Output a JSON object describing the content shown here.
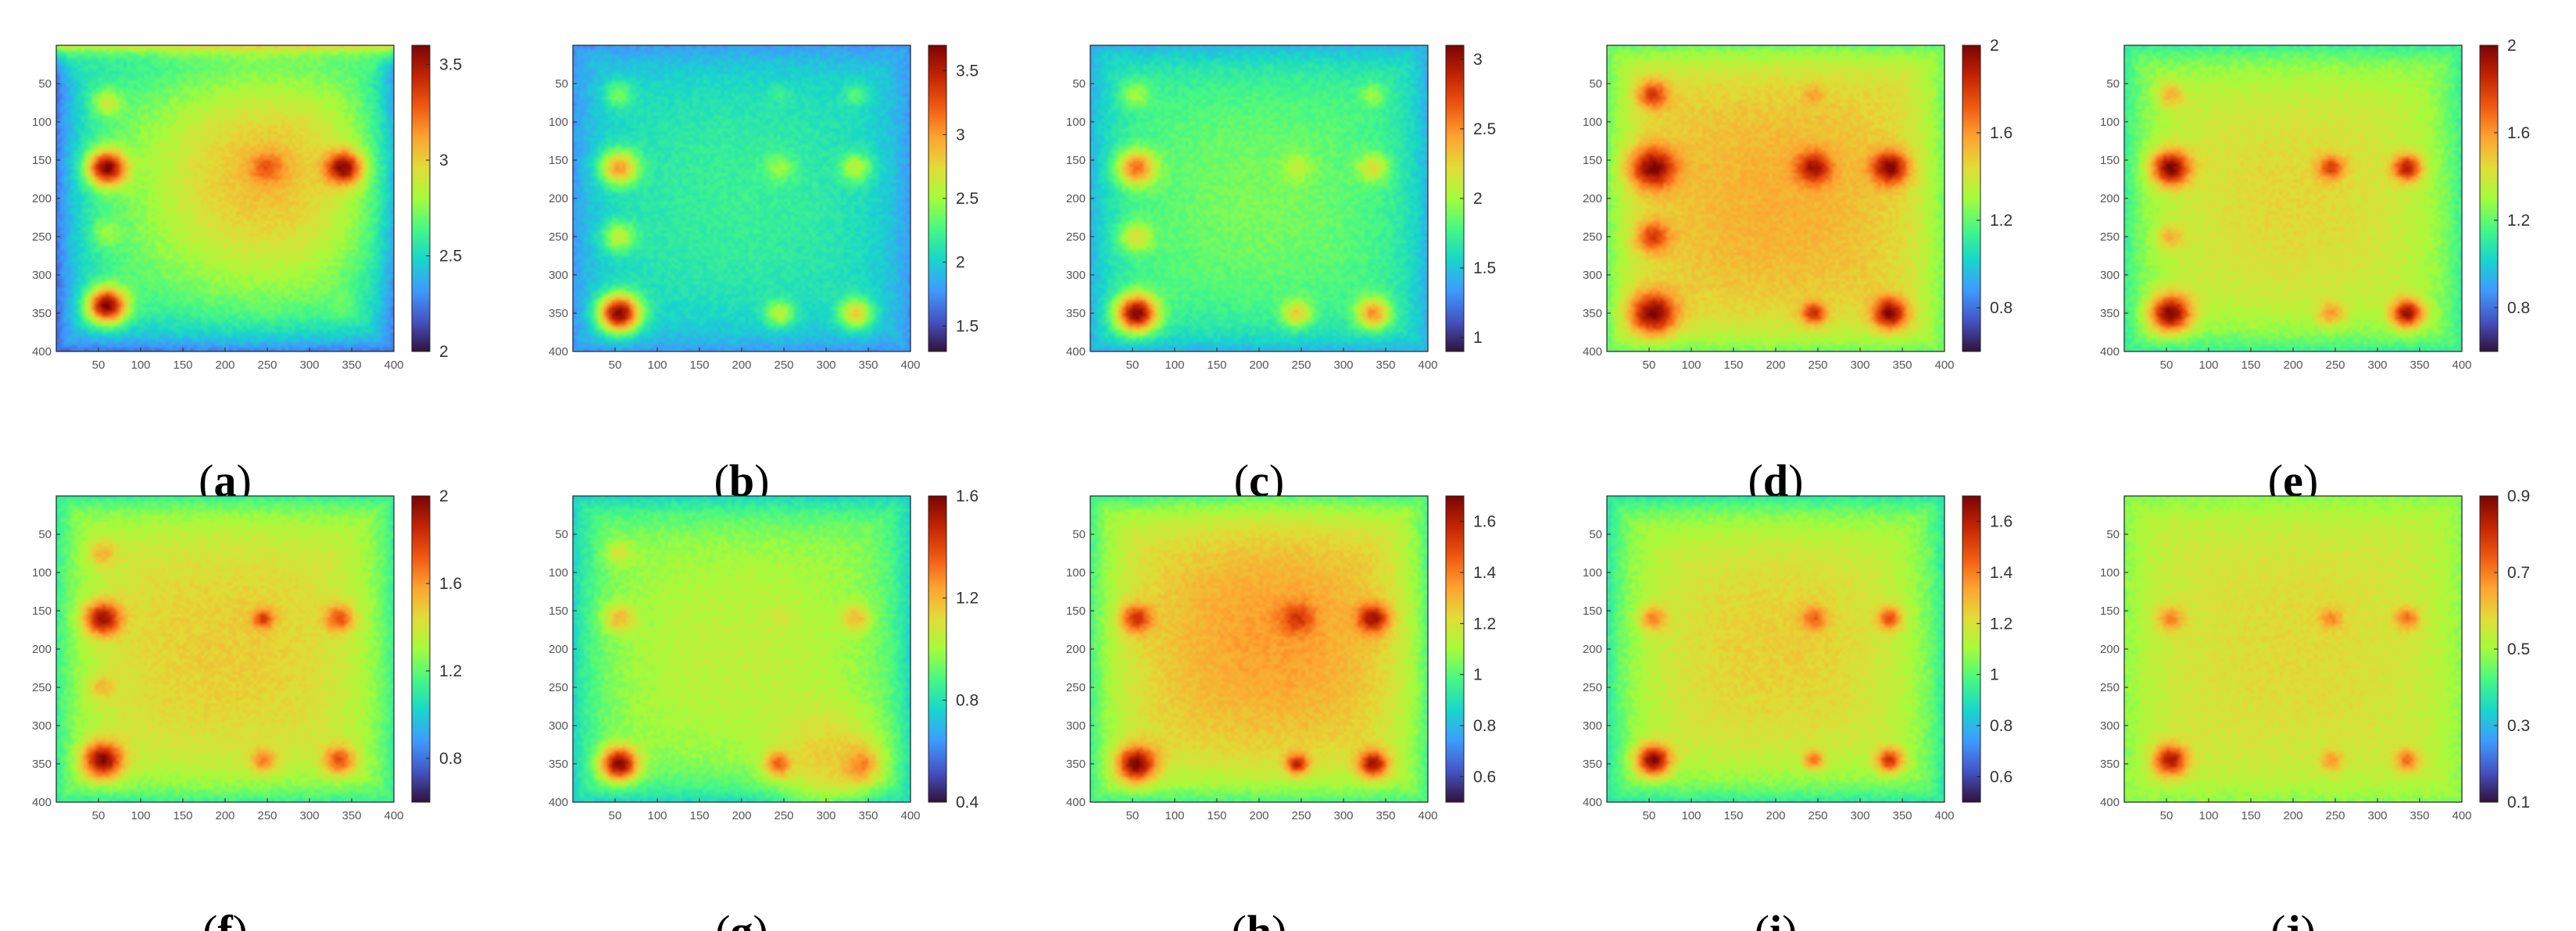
{
  "figure": {
    "colormap": [
      "#30123b",
      "#4454c4",
      "#3e9bfe",
      "#18d6cb",
      "#46f884",
      "#a4fc3c",
      "#e2dc38",
      "#fea331",
      "#ef5911",
      "#c22402",
      "#7a0403"
    ],
    "panels": [
      {
        "label": "a",
        "x_ticks": [
          "50",
          "100",
          "150",
          "200",
          "250",
          "300",
          "350",
          "400"
        ],
        "y_ticks": [
          "50",
          "100",
          "150",
          "200",
          "250",
          "300",
          "350",
          "400"
        ],
        "colorbar": {
          "min": 2.0,
          "max": 3.6,
          "ticks": [
            "2",
            "2.5",
            "3",
            "3.5"
          ]
        }
      },
      {
        "label": "b",
        "x_ticks": [
          "50",
          "100",
          "150",
          "200",
          "250",
          "300",
          "350",
          "400"
        ],
        "y_ticks": [
          "50",
          "100",
          "150",
          "200",
          "250",
          "300",
          "350",
          "400"
        ],
        "colorbar": {
          "min": 1.3,
          "max": 3.7,
          "ticks": [
            "1.5",
            "2",
            "2.5",
            "3",
            "3.5"
          ]
        }
      },
      {
        "label": "c",
        "x_ticks": [
          "50",
          "100",
          "150",
          "200",
          "250",
          "300",
          "350",
          "400"
        ],
        "y_ticks": [
          "50",
          "100",
          "150",
          "200",
          "250",
          "300",
          "350",
          "400"
        ],
        "colorbar": {
          "min": 0.9,
          "max": 3.1,
          "ticks": [
            "1",
            "1.5",
            "2",
            "2.5",
            "3"
          ]
        }
      },
      {
        "label": "d",
        "x_ticks": [
          "50",
          "100",
          "150",
          "200",
          "250",
          "300",
          "350",
          "400"
        ],
        "y_ticks": [
          "50",
          "100",
          "150",
          "200",
          "250",
          "300",
          "350",
          "400"
        ],
        "colorbar": {
          "min": 0.6,
          "max": 2.0,
          "ticks": [
            "0.8",
            "1.2",
            "1.6",
            "2"
          ]
        }
      },
      {
        "label": "e",
        "x_ticks": [
          "50",
          "100",
          "150",
          "200",
          "250",
          "300",
          "350",
          "400"
        ],
        "y_ticks": [
          "50",
          "100",
          "150",
          "200",
          "250",
          "300",
          "350",
          "400"
        ],
        "colorbar": {
          "min": 0.6,
          "max": 2.0,
          "ticks": [
            "0.8",
            "1.2",
            "1.6",
            "2"
          ]
        }
      },
      {
        "label": "f",
        "x_ticks": [
          "50",
          "100",
          "150",
          "200",
          "250",
          "300",
          "350",
          "400"
        ],
        "y_ticks": [
          "50",
          "100",
          "150",
          "200",
          "250",
          "300",
          "350",
          "400"
        ],
        "colorbar": {
          "min": 0.6,
          "max": 2.0,
          "ticks": [
            "0.8",
            "1.2",
            "1.6",
            "2"
          ]
        }
      },
      {
        "label": "g",
        "x_ticks": [
          "50",
          "100",
          "150",
          "200",
          "250",
          "300",
          "350",
          "400"
        ],
        "y_ticks": [
          "50",
          "100",
          "150",
          "200",
          "250",
          "300",
          "350",
          "400"
        ],
        "colorbar": {
          "min": 0.4,
          "max": 1.6,
          "ticks": [
            "0.4",
            "0.8",
            "1.2",
            "1.6"
          ]
        }
      },
      {
        "label": "h",
        "x_ticks": [
          "50",
          "100",
          "150",
          "200",
          "250",
          "300",
          "350",
          "400"
        ],
        "y_ticks": [
          "50",
          "100",
          "150",
          "200",
          "250",
          "300",
          "350",
          "400"
        ],
        "colorbar": {
          "min": 0.5,
          "max": 1.7,
          "ticks": [
            "0.6",
            "0.8",
            "1",
            "1.2",
            "1.4",
            "1.6"
          ]
        }
      },
      {
        "label": "i",
        "x_ticks": [
          "50",
          "100",
          "150",
          "200",
          "250",
          "300",
          "350",
          "400"
        ],
        "y_ticks": [
          "50",
          "100",
          "150",
          "200",
          "250",
          "300",
          "350",
          "400"
        ],
        "colorbar": {
          "min": 0.5,
          "max": 1.7,
          "ticks": [
            "0.6",
            "0.8",
            "1",
            "1.2",
            "1.4",
            "1.6"
          ]
        }
      },
      {
        "label": "j",
        "x_ticks": [
          "50",
          "100",
          "150",
          "200",
          "250",
          "300",
          "350",
          "400"
        ],
        "y_ticks": [
          "50",
          "100",
          "150",
          "200",
          "250",
          "300",
          "350",
          "400"
        ],
        "colorbar": {
          "min": 0.1,
          "max": 0.9,
          "ticks": [
            "0.1",
            "0.3",
            "0.5",
            "0.7",
            "0.9"
          ]
        }
      }
    ]
  },
  "chart_data": [
    {
      "type": "heatmap",
      "panel": "a",
      "x_range": [
        0,
        400
      ],
      "y_range": [
        0,
        400
      ],
      "color_range": [
        2.0,
        3.6
      ],
      "colorbar_ticks": [
        2,
        2.5,
        3,
        3.5
      ],
      "background": {
        "base": 2.6,
        "center": [
          250,
          170
        ],
        "center_peak": 3.05,
        "edge_low": 2.2,
        "top_edge_high": 3.3
      },
      "spots": [
        {
          "x": 60,
          "y": 75,
          "value": 2.9,
          "r": 12
        },
        {
          "x": 60,
          "y": 160,
          "value": 3.6,
          "r": 16
        },
        {
          "x": 60,
          "y": 245,
          "value": 2.8,
          "r": 12
        },
        {
          "x": 60,
          "y": 340,
          "value": 3.6,
          "r": 16
        },
        {
          "x": 250,
          "y": 160,
          "value": 3.3,
          "r": 14
        },
        {
          "x": 340,
          "y": 160,
          "value": 3.6,
          "r": 15
        },
        {
          "x": 250,
          "y": 340,
          "value": 2.7,
          "r": 10
        },
        {
          "x": 340,
          "y": 340,
          "value": 2.7,
          "r": 11
        }
      ]
    },
    {
      "type": "heatmap",
      "panel": "b",
      "x_range": [
        0,
        400
      ],
      "y_range": [
        0,
        400
      ],
      "color_range": [
        1.3,
        3.7
      ],
      "colorbar_ticks": [
        1.5,
        2,
        2.5,
        3,
        3.5
      ],
      "background": {
        "base": 2.05,
        "center_peak": 2.2,
        "edge_low": 1.75
      },
      "spots": [
        {
          "x": 55,
          "y": 65,
          "value": 2.4,
          "r": 12
        },
        {
          "x": 55,
          "y": 160,
          "value": 3.0,
          "r": 16
        },
        {
          "x": 55,
          "y": 250,
          "value": 2.6,
          "r": 14
        },
        {
          "x": 55,
          "y": 350,
          "value": 3.7,
          "r": 17
        },
        {
          "x": 245,
          "y": 160,
          "value": 2.5,
          "r": 12
        },
        {
          "x": 335,
          "y": 160,
          "value": 2.6,
          "r": 13
        },
        {
          "x": 245,
          "y": 350,
          "value": 2.6,
          "r": 12
        },
        {
          "x": 335,
          "y": 350,
          "value": 2.8,
          "r": 14
        },
        {
          "x": 245,
          "y": 65,
          "value": 2.2,
          "r": 9
        },
        {
          "x": 335,
          "y": 65,
          "value": 2.3,
          "r": 10
        }
      ]
    },
    {
      "type": "heatmap",
      "panel": "c",
      "x_range": [
        0,
        400
      ],
      "y_range": [
        0,
        400
      ],
      "color_range": [
        0.9,
        3.1
      ],
      "colorbar_ticks": [
        1,
        1.5,
        2,
        2.5,
        3
      ],
      "background": {
        "base": 1.75,
        "center_peak": 1.9,
        "edge_low": 1.4
      },
      "spots": [
        {
          "x": 55,
          "y": 65,
          "value": 2.0,
          "r": 12
        },
        {
          "x": 55,
          "y": 160,
          "value": 2.6,
          "r": 16
        },
        {
          "x": 55,
          "y": 250,
          "value": 2.2,
          "r": 14
        },
        {
          "x": 55,
          "y": 350,
          "value": 3.1,
          "r": 17
        },
        {
          "x": 245,
          "y": 160,
          "value": 2.1,
          "r": 12
        },
        {
          "x": 335,
          "y": 160,
          "value": 2.2,
          "r": 13
        },
        {
          "x": 245,
          "y": 350,
          "value": 2.3,
          "r": 12
        },
        {
          "x": 335,
          "y": 350,
          "value": 2.5,
          "r": 14
        },
        {
          "x": 335,
          "y": 65,
          "value": 2.0,
          "r": 10
        }
      ]
    },
    {
      "type": "heatmap",
      "panel": "d",
      "x_range": [
        0,
        400
      ],
      "y_range": [
        0,
        400
      ],
      "color_range": [
        0.6,
        2.0
      ],
      "colorbar_ticks": [
        0.8,
        1.2,
        1.6,
        2
      ],
      "background": {
        "base": 1.45,
        "center_peak": 1.55,
        "edge_low": 1.2
      },
      "spots": [
        {
          "x": 55,
          "y": 65,
          "value": 1.8,
          "r": 13
        },
        {
          "x": 55,
          "y": 160,
          "value": 2.0,
          "r": 19
        },
        {
          "x": 55,
          "y": 250,
          "value": 1.8,
          "r": 14
        },
        {
          "x": 55,
          "y": 350,
          "value": 2.0,
          "r": 19
        },
        {
          "x": 245,
          "y": 160,
          "value": 1.95,
          "r": 14
        },
        {
          "x": 335,
          "y": 160,
          "value": 2.0,
          "r": 15
        },
        {
          "x": 245,
          "y": 350,
          "value": 1.85,
          "r": 10
        },
        {
          "x": 335,
          "y": 350,
          "value": 2.0,
          "r": 14
        },
        {
          "x": 245,
          "y": 65,
          "value": 1.6,
          "r": 8
        }
      ]
    },
    {
      "type": "heatmap",
      "panel": "e",
      "x_range": [
        0,
        400
      ],
      "y_range": [
        0,
        400
      ],
      "color_range": [
        0.6,
        2.0
      ],
      "colorbar_ticks": [
        0.8,
        1.2,
        1.6,
        2
      ],
      "background": {
        "base": 1.35,
        "center_peak": 1.45,
        "edge_low": 1.1
      },
      "spots": [
        {
          "x": 55,
          "y": 65,
          "value": 1.55,
          "r": 11
        },
        {
          "x": 55,
          "y": 160,
          "value": 2.0,
          "r": 16
        },
        {
          "x": 55,
          "y": 250,
          "value": 1.55,
          "r": 11
        },
        {
          "x": 55,
          "y": 350,
          "value": 2.0,
          "r": 17
        },
        {
          "x": 245,
          "y": 160,
          "value": 1.8,
          "r": 11
        },
        {
          "x": 335,
          "y": 160,
          "value": 1.9,
          "r": 12
        },
        {
          "x": 245,
          "y": 350,
          "value": 1.6,
          "r": 11
        },
        {
          "x": 335,
          "y": 350,
          "value": 1.95,
          "r": 13
        }
      ]
    },
    {
      "type": "heatmap",
      "panel": "f",
      "x_range": [
        0,
        400
      ],
      "y_range": [
        0,
        400
      ],
      "color_range": [
        0.6,
        2.0
      ],
      "colorbar_ticks": [
        0.8,
        1.2,
        1.6,
        2
      ],
      "background": {
        "base": 1.38,
        "center_peak": 1.48,
        "edge_low": 1.1
      },
      "spots": [
        {
          "x": 55,
          "y": 75,
          "value": 1.55,
          "r": 11
        },
        {
          "x": 55,
          "y": 160,
          "value": 1.95,
          "r": 15
        },
        {
          "x": 55,
          "y": 250,
          "value": 1.55,
          "r": 10
        },
        {
          "x": 55,
          "y": 345,
          "value": 2.0,
          "r": 16
        },
        {
          "x": 245,
          "y": 160,
          "value": 1.8,
          "r": 9
        },
        {
          "x": 335,
          "y": 160,
          "value": 1.75,
          "r": 12
        },
        {
          "x": 245,
          "y": 345,
          "value": 1.65,
          "r": 11
        },
        {
          "x": 335,
          "y": 345,
          "value": 1.75,
          "r": 13
        }
      ]
    },
    {
      "type": "heatmap",
      "panel": "g",
      "x_range": [
        0,
        400
      ],
      "y_range": [
        0,
        400
      ],
      "color_range": [
        0.4,
        1.6
      ],
      "colorbar_ticks": [
        0.4,
        0.8,
        1.2,
        1.6
      ],
      "background": {
        "base": 0.98,
        "center_peak": 1.05,
        "edge_low": 0.75
      },
      "spots": [
        {
          "x": 55,
          "y": 75,
          "value": 1.1,
          "r": 11
        },
        {
          "x": 55,
          "y": 160,
          "value": 1.2,
          "r": 13
        },
        {
          "x": 55,
          "y": 350,
          "value": 1.6,
          "r": 15
        },
        {
          "x": 245,
          "y": 160,
          "value": 1.1,
          "r": 9
        },
        {
          "x": 335,
          "y": 160,
          "value": 1.2,
          "r": 12
        },
        {
          "x": 245,
          "y": 350,
          "value": 1.55,
          "r": 11
        },
        {
          "x": 335,
          "y": 350,
          "value": 1.6,
          "r": 16
        },
        {
          "x": 300,
          "y": 340,
          "value": 1.15,
          "r": 45
        }
      ]
    },
    {
      "type": "heatmap",
      "panel": "h",
      "x_range": [
        0,
        400
      ],
      "y_range": [
        0,
        400
      ],
      "color_range": [
        0.5,
        1.7
      ],
      "colorbar_ticks": [
        0.6,
        0.8,
        1,
        1.2,
        1.4,
        1.6
      ],
      "background": {
        "base": 1.2,
        "center": [
          220,
          180
        ],
        "center_peak": 1.35,
        "edge_low": 0.95
      },
      "spots": [
        {
          "x": 55,
          "y": 160,
          "value": 1.55,
          "r": 13
        },
        {
          "x": 55,
          "y": 350,
          "value": 1.7,
          "r": 16
        },
        {
          "x": 245,
          "y": 160,
          "value": 1.55,
          "r": 13
        },
        {
          "x": 335,
          "y": 160,
          "value": 1.65,
          "r": 13
        },
        {
          "x": 245,
          "y": 350,
          "value": 1.6,
          "r": 9
        },
        {
          "x": 335,
          "y": 350,
          "value": 1.65,
          "r": 12
        }
      ]
    },
    {
      "type": "heatmap",
      "panel": "i",
      "x_range": [
        0,
        400
      ],
      "y_range": [
        0,
        400
      ],
      "color_range": [
        0.5,
        1.7
      ],
      "colorbar_ticks": [
        0.6,
        0.8,
        1,
        1.2,
        1.4,
        1.6
      ],
      "background": {
        "base": 1.15,
        "center_peak": 1.25,
        "edge_low": 0.9
      },
      "spots": [
        {
          "x": 55,
          "y": 160,
          "value": 1.4,
          "r": 11
        },
        {
          "x": 55,
          "y": 345,
          "value": 1.7,
          "r": 14
        },
        {
          "x": 245,
          "y": 160,
          "value": 1.45,
          "r": 11
        },
        {
          "x": 335,
          "y": 160,
          "value": 1.5,
          "r": 10
        },
        {
          "x": 245,
          "y": 345,
          "value": 1.45,
          "r": 8
        },
        {
          "x": 335,
          "y": 345,
          "value": 1.55,
          "r": 11
        }
      ]
    },
    {
      "type": "heatmap",
      "panel": "j",
      "x_range": [
        0,
        400
      ],
      "y_range": [
        0,
        400
      ],
      "color_range": [
        0.1,
        0.9
      ],
      "colorbar_ticks": [
        0.1,
        0.3,
        0.5,
        0.7,
        0.9
      ],
      "background": {
        "base": 0.55,
        "center_peak": 0.58,
        "edge_low": 0.47
      },
      "spots": [
        {
          "x": 55,
          "y": 160,
          "value": 0.7,
          "r": 11
        },
        {
          "x": 55,
          "y": 345,
          "value": 0.85,
          "r": 14
        },
        {
          "x": 245,
          "y": 160,
          "value": 0.7,
          "r": 9
        },
        {
          "x": 335,
          "y": 160,
          "value": 0.72,
          "r": 10
        },
        {
          "x": 245,
          "y": 345,
          "value": 0.68,
          "r": 9
        },
        {
          "x": 335,
          "y": 345,
          "value": 0.72,
          "r": 10
        }
      ]
    }
  ]
}
